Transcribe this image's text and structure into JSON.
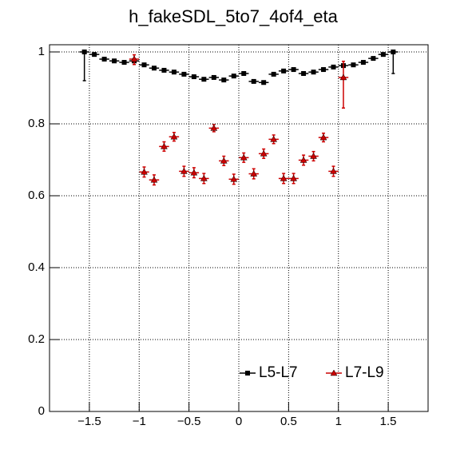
{
  "chart_data": {
    "type": "errorbar",
    "title": "h_fakeSDL_5to7_4of4_eta",
    "x": [
      -1.55,
      -1.45,
      -1.35,
      -1.25,
      -1.15,
      -1.05,
      -0.95,
      -0.85,
      -0.75,
      -0.65,
      -0.55,
      -0.45,
      -0.35,
      -0.25,
      -0.15,
      -0.05,
      0.05,
      0.15,
      0.25,
      0.35,
      0.45,
      0.55,
      0.65,
      0.75,
      0.85,
      0.95,
      1.05,
      1.15,
      1.25,
      1.35,
      1.45,
      1.55
    ],
    "bin_width": 0.1,
    "series": [
      {
        "name": "L5-L7",
        "color": "#000000",
        "marker": "square",
        "values": [
          1.0,
          0.993,
          0.98,
          0.975,
          0.971,
          0.975,
          0.964,
          0.955,
          0.949,
          0.944,
          0.938,
          0.931,
          0.924,
          0.929,
          0.922,
          0.933,
          0.94,
          0.918,
          0.915,
          0.938,
          0.947,
          0.951,
          0.94,
          0.944,
          0.951,
          0.958,
          0.962,
          0.964,
          0.971,
          0.982,
          0.993,
          1.0
        ],
        "errors_low": [
          0.08,
          0.004,
          0.004,
          0.004,
          0.004,
          0.004,
          0.004,
          0.004,
          0.004,
          0.004,
          0.004,
          0.004,
          0.004,
          0.004,
          0.004,
          0.004,
          0.004,
          0.004,
          0.004,
          0.004,
          0.004,
          0.004,
          0.004,
          0.004,
          0.004,
          0.004,
          0.004,
          0.004,
          0.004,
          0.004,
          0.004,
          0.06
        ],
        "errors_high": [
          0.0,
          0.003,
          0.003,
          0.003,
          0.003,
          0.003,
          0.003,
          0.003,
          0.003,
          0.003,
          0.003,
          0.003,
          0.003,
          0.003,
          0.003,
          0.003,
          0.003,
          0.003,
          0.003,
          0.003,
          0.003,
          0.003,
          0.003,
          0.003,
          0.003,
          0.003,
          0.003,
          0.003,
          0.003,
          0.003,
          0.003,
          0.0
        ]
      },
      {
        "name": "L7-L9",
        "color": "#cc0000",
        "marker": "triangle",
        "values": [
          null,
          null,
          null,
          null,
          null,
          0.98,
          0.666,
          0.644,
          0.737,
          0.764,
          0.668,
          0.664,
          0.648,
          0.788,
          0.697,
          0.646,
          0.706,
          0.661,
          0.717,
          0.757,
          0.648,
          0.648,
          0.699,
          0.71,
          0.762,
          0.668,
          0.929,
          null,
          null,
          null,
          null,
          null
        ],
        "errors_low": [
          null,
          null,
          null,
          null,
          null,
          0.015,
          0.014,
          0.014,
          0.013,
          0.012,
          0.014,
          0.014,
          0.014,
          0.01,
          0.013,
          0.014,
          0.013,
          0.014,
          0.013,
          0.012,
          0.014,
          0.014,
          0.014,
          0.013,
          0.012,
          0.014,
          0.085,
          null,
          null,
          null,
          null,
          null
        ],
        "errors_high": [
          null,
          null,
          null,
          null,
          null,
          0.012,
          0.014,
          0.014,
          0.013,
          0.012,
          0.014,
          0.014,
          0.014,
          0.01,
          0.013,
          0.014,
          0.013,
          0.014,
          0.013,
          0.012,
          0.014,
          0.014,
          0.014,
          0.013,
          0.012,
          0.014,
          0.045,
          null,
          null,
          null,
          null,
          null
        ]
      }
    ],
    "xlim": [
      -1.9,
      1.9
    ],
    "ylim": [
      0,
      1.02
    ],
    "xticks": [
      {
        "value": -1.5,
        "label": "−1.5"
      },
      {
        "value": -1,
        "label": "−1"
      },
      {
        "value": -0.5,
        "label": "−0.5"
      },
      0,
      0.5,
      1,
      1.5
    ],
    "yticks": [
      0,
      0.2,
      0.4,
      0.6,
      0.8,
      1
    ],
    "grid": true,
    "legend": "lower right"
  }
}
